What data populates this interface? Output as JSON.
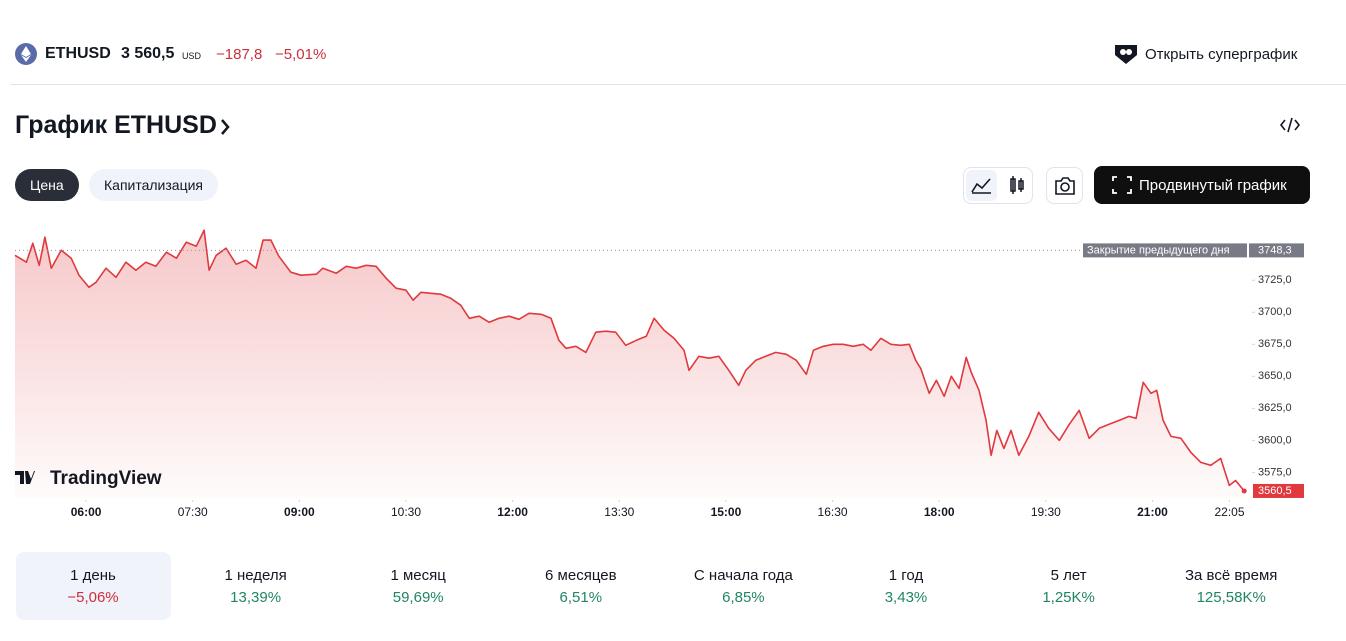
{
  "header": {
    "ticker": "ETHUSD",
    "price": "3 560,5",
    "currency": "USD",
    "change": "−187,8",
    "change_pct": "−5,01%",
    "supergraph": "Открыть суперграфик"
  },
  "title": "График ETHUSD",
  "tabs": [
    "Цена",
    "Капитализация"
  ],
  "advanced_button": "Продвинутый график",
  "branding": "TradingView",
  "periods": [
    {
      "label": "1 день",
      "value": "−5,06%"
    },
    {
      "label": "1 неделя",
      "value": "13,39%"
    },
    {
      "label": "1 месяц",
      "value": "59,69%"
    },
    {
      "label": "6 месяцев",
      "value": "6,51%"
    },
    {
      "label": "С начала года",
      "value": "6,85%"
    },
    {
      "label": "1 год",
      "value": "3,43%"
    },
    {
      "label": "5 лет",
      "value": "1,25K%"
    },
    {
      "label": "За всё время",
      "value": "125,58K%"
    }
  ],
  "chart_data": {
    "type": "line",
    "color": "#e0393e",
    "x": [
      5.0,
      5.16,
      5.25,
      5.34,
      5.42,
      5.51,
      5.65,
      5.79,
      5.9,
      6.04,
      6.14,
      6.28,
      6.42,
      6.56,
      6.7,
      6.84,
      6.98,
      7.13,
      7.27,
      7.41,
      7.55,
      7.66,
      7.73,
      7.83,
      7.97,
      8.11,
      8.25,
      8.39,
      8.49,
      8.6,
      8.71,
      8.88,
      9.02,
      9.24,
      9.33,
      9.52,
      9.66,
      9.8,
      9.94,
      10.08,
      10.22,
      10.36,
      10.5,
      10.6,
      10.71,
      10.85,
      10.99,
      11.13,
      11.27,
      11.39,
      11.53,
      11.67,
      11.81,
      11.95,
      12.09,
      12.23,
      12.4,
      12.54,
      12.65,
      12.75,
      12.89,
      13.03,
      13.17,
      13.31,
      13.45,
      13.59,
      13.74,
      13.88,
      13.99,
      14.13,
      14.27,
      14.41,
      14.48,
      14.62,
      14.76,
      14.9,
      15.04,
      15.18,
      15.28,
      15.42,
      15.56,
      15.7,
      15.85,
      15.99,
      16.13,
      16.23,
      16.37,
      16.51,
      16.65,
      16.79,
      16.93,
      17.04,
      17.18,
      17.32,
      17.46,
      17.58,
      17.67,
      17.74,
      17.86,
      17.96,
      18.07,
      18.17,
      18.28,
      18.38,
      18.45,
      18.56,
      18.66,
      18.73,
      18.81,
      18.91,
      19.01,
      19.12,
      19.26,
      19.4,
      19.54,
      19.69,
      19.83,
      19.97,
      20.11,
      20.25,
      20.39,
      20.53,
      20.67,
      20.77,
      20.87,
      20.98,
      21.06,
      21.15,
      21.26,
      21.4,
      21.54,
      21.68,
      21.82,
      21.96,
      22.08,
      22.17,
      22.29
    ],
    "values": [
      3744.5,
      3739.1,
      3753.9,
      3736.7,
      3758.6,
      3734.4,
      3748.4,
      3742.2,
      3728.9,
      3719.5,
      3723.4,
      3734.4,
      3727.3,
      3739.1,
      3732.8,
      3739.1,
      3735.9,
      3746.9,
      3742.2,
      3754.7,
      3751.6,
      3764.1,
      3732.8,
      3744.5,
      3750.0,
      3737.5,
      3740.6,
      3734.4,
      3756.3,
      3756.3,
      3743.8,
      3731.3,
      3728.9,
      3729.7,
      3734.4,
      3730.5,
      3735.9,
      3734.4,
      3736.7,
      3735.9,
      3726.6,
      3718.8,
      3717.2,
      3709.4,
      3715.6,
      3714.8,
      3714.1,
      3710.9,
      3705.5,
      3695.3,
      3696.9,
      3692.2,
      3695.3,
      3696.9,
      3694.5,
      3699.2,
      3698.4,
      3695.3,
      3678.1,
      3671.9,
      3673.4,
      3668.7,
      3684.4,
      3685.2,
      3684.4,
      3674.2,
      3678.1,
      3681.2,
      3695.3,
      3685.9,
      3679.7,
      3670.3,
      3654.7,
      3665.6,
      3664.1,
      3665.6,
      3654.7,
      3643.0,
      3654.7,
      3662.5,
      3665.6,
      3668.7,
      3667.2,
      3662.5,
      3651.6,
      3670.3,
      3673.4,
      3675.0,
      3675.0,
      3673.4,
      3675.0,
      3670.3,
      3679.7,
      3675.0,
      3674.2,
      3675.0,
      3662.5,
      3656.2,
      3636.7,
      3646.9,
      3634.4,
      3650.0,
      3640.6,
      3664.8,
      3653.1,
      3639.1,
      3615.6,
      3588.3,
      3607.8,
      3593.7,
      3607.8,
      3588.3,
      3603.1,
      3621.9,
      3609.4,
      3600.0,
      3612.5,
      3623.4,
      3601.6,
      3609.4,
      3612.5,
      3615.6,
      3618.7,
      3617.2,
      3645.3,
      3636.7,
      3639.1,
      3615.6,
      3603.1,
      3601.6,
      3590.6,
      3582.8,
      3580.5,
      3585.9,
      3564.8,
      3568.7,
      3560.5
    ],
    "xlim": [
      5.0,
      22.4
    ],
    "xticks": [
      {
        "value": 6,
        "label": "06:00"
      },
      {
        "value": 7.5,
        "label": "07:30"
      },
      {
        "value": 9,
        "label": "09:00"
      },
      {
        "value": 10.5,
        "label": "10:30"
      },
      {
        "value": 12,
        "label": "12:00"
      },
      {
        "value": 13.5,
        "label": "13:30"
      },
      {
        "value": 15,
        "label": "15:00"
      },
      {
        "value": 16.5,
        "label": "16:30"
      },
      {
        "value": 18,
        "label": "18:00"
      },
      {
        "value": 19.5,
        "label": "19:30"
      },
      {
        "value": 21,
        "label": "21:00"
      },
      {
        "value": 22.0833,
        "label": "22:05"
      }
    ],
    "ylim": [
      3555,
      3765
    ],
    "yticks": [
      {
        "value": 3575,
        "label": "3575,0"
      },
      {
        "value": 3600,
        "label": "3600,0"
      },
      {
        "value": 3625,
        "label": "3625,0"
      },
      {
        "value": 3650,
        "label": "3650,0"
      },
      {
        "value": 3675,
        "label": "3675,0"
      },
      {
        "value": 3700,
        "label": "3700,0"
      },
      {
        "value": 3725,
        "label": "3725,0"
      }
    ],
    "prev_close": {
      "name": "Закрытие предыдущего дня",
      "value": 3748.3,
      "label": "3748,3"
    },
    "last_price": {
      "value": 3560.5,
      "label": "3560,5"
    }
  }
}
